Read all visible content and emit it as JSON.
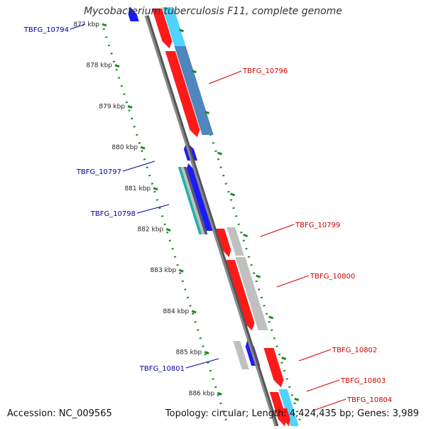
{
  "title": "Mycobacterium tuberculosis F11, complete genome",
  "footer": {
    "accession": "Accession: NC_009565",
    "summary": "Topology: circular; Length: 4,424,435 bp; Genes: 3,989"
  },
  "colors": {
    "forward_gene": "#ff1a1a",
    "reverse_gene": "#1a1aff",
    "backbone": "#8a8a8a",
    "ticks": "#1e8a1e",
    "label_forward": "#cc0000",
    "label_reverse": "#0000aa",
    "cds_light_blue": "#4fd3ff",
    "cds_steel": "#4f86bd",
    "cds_grey": "#c0c0c0",
    "cds_teal": "#1fb0b0"
  },
  "scale": {
    "ticks": [
      {
        "kbp": 877,
        "label": "877 kbp"
      },
      {
        "kbp": 878,
        "label": "878 kbp"
      },
      {
        "kbp": 879,
        "label": "879 kbp"
      },
      {
        "kbp": 880,
        "label": "880 kbp"
      },
      {
        "kbp": 881,
        "label": "881 kbp"
      },
      {
        "kbp": 882,
        "label": "882 kbp"
      },
      {
        "kbp": 883,
        "label": "883 kbp"
      },
      {
        "kbp": 884,
        "label": "884 kbp"
      },
      {
        "kbp": 885,
        "label": "885 kbp"
      },
      {
        "kbp": 886,
        "label": "886 kbp"
      }
    ]
  },
  "genes": [
    {
      "name": "TBFG_10794",
      "strand": "reverse",
      "color_key": "reverse_gene"
    },
    {
      "name": "TBFG_10796",
      "strand": "forward",
      "color_key": "forward_gene"
    },
    {
      "name": "TBFG_10797",
      "strand": "reverse",
      "color_key": "reverse_gene"
    },
    {
      "name": "TBFG_10798",
      "strand": "reverse",
      "color_key": "reverse_gene"
    },
    {
      "name": "TBFG_10799",
      "strand": "forward",
      "color_key": "forward_gene"
    },
    {
      "name": "TBFG_10800",
      "strand": "forward",
      "color_key": "forward_gene"
    },
    {
      "name": "TBFG_10801",
      "strand": "reverse",
      "color_key": "reverse_gene"
    },
    {
      "name": "TBFG_10802",
      "strand": "forward",
      "color_key": "forward_gene"
    },
    {
      "name": "TBFG_10803",
      "strand": "forward",
      "color_key": "forward_gene"
    },
    {
      "name": "TBFG_10804",
      "strand": "forward",
      "color_key": "forward_gene"
    }
  ]
}
